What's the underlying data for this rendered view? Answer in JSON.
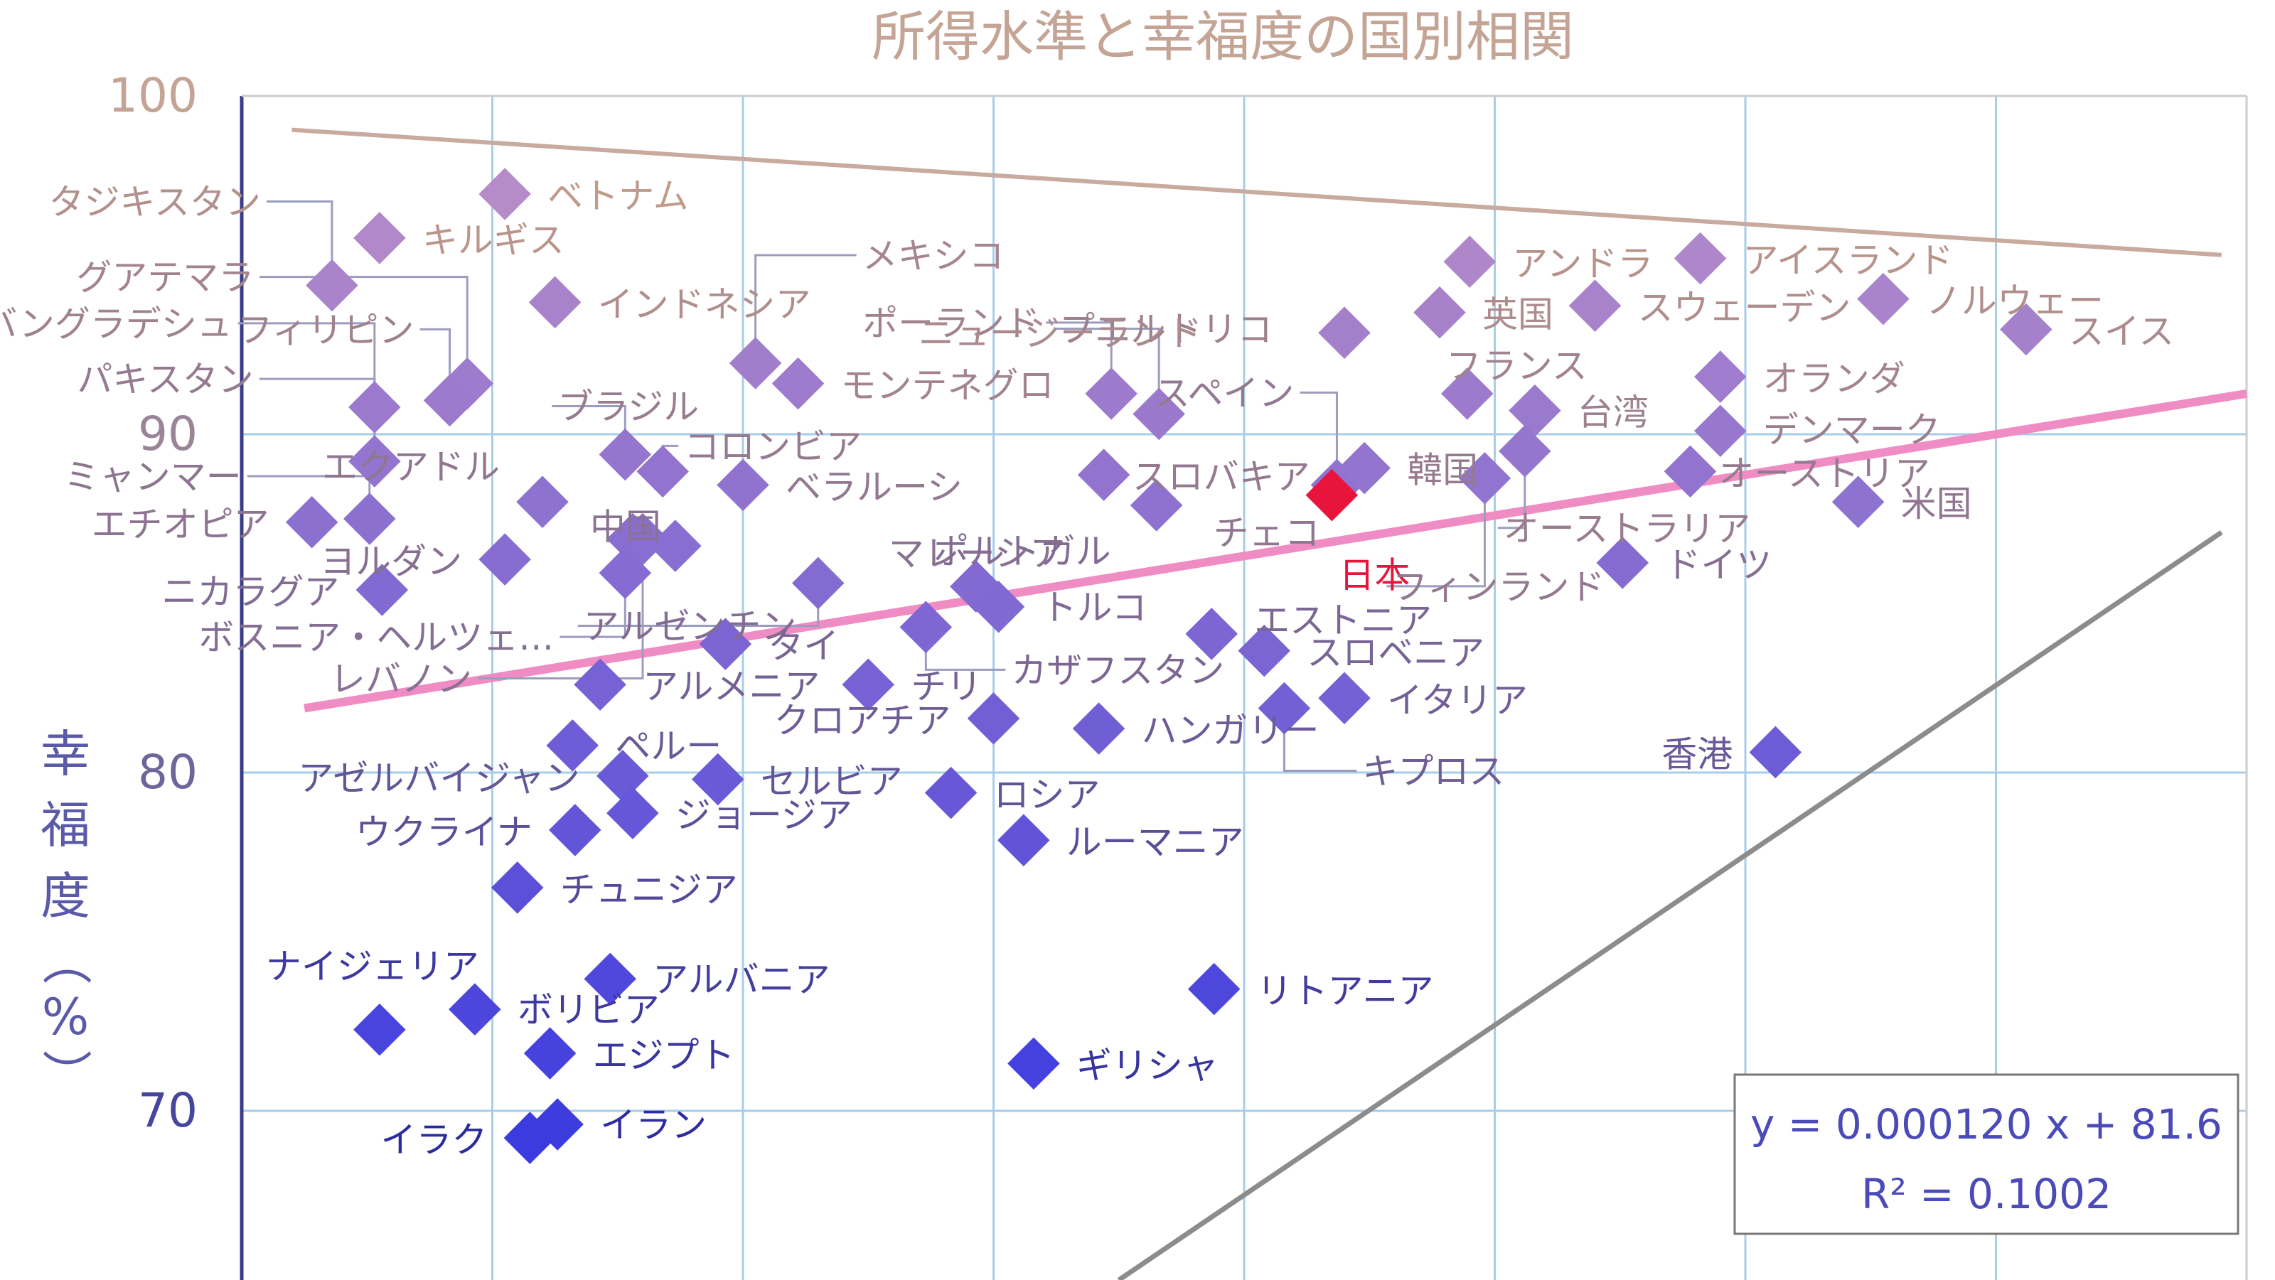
{
  "chart_data": {
    "type": "scatter",
    "title": "所得水準と幸福度の国別相関",
    "xlabel": "",
    "ylabel": "幸福度（%）",
    "xlim": [
      0,
      80000
    ],
    "ylim": [
      65,
      100
    ],
    "yticks": [
      70,
      80,
      90,
      100
    ],
    "x_gridlines": [
      0,
      10000,
      20000,
      30000,
      40000,
      50000,
      60000,
      70000,
      80000
    ],
    "grid": true,
    "legend": "none",
    "trendline": {
      "equation": "y = 0.000120 x + 81.6",
      "r2": "R² = 0.1002",
      "slope": 0.00012,
      "intercept": 81.6,
      "color": "#f08cc4"
    },
    "upper_line": {
      "from": [
        2000,
        99.0
      ],
      "to": [
        79000,
        95.3
      ],
      "color": "#c8aa9e"
    },
    "lower_line": {
      "from": [
        35000,
        65.0
      ],
      "to": [
        79000,
        87.1
      ],
      "color": "#8c8c8c"
    },
    "highlight_color": "#e8143c",
    "points": [
      {
        "name": "ベトナム",
        "x": 10500,
        "y": 97.1
      },
      {
        "name": "キルギス",
        "x": 5500,
        "y": 95.8
      },
      {
        "name": "タジキスタン",
        "x": 3600,
        "y": 94.4
      },
      {
        "name": "グアテマラ",
        "x": 9000,
        "y": 91.5
      },
      {
        "name": "フィリピン",
        "x": 8300,
        "y": 91.0
      },
      {
        "name": "バングラデシュ",
        "x": 5300,
        "y": 90.8
      },
      {
        "name": "パキスタン",
        "x": 5300,
        "y": 89.2
      },
      {
        "name": "インドネシア",
        "x": 12500,
        "y": 93.9
      },
      {
        "name": "メキシコ",
        "x": 20500,
        "y": 92.1
      },
      {
        "name": "モンテネグロ",
        "x": 22200,
        "y": 91.5
      },
      {
        "name": "ブラジル",
        "x": 15300,
        "y": 89.4
      },
      {
        "name": "コロンビア",
        "x": 16800,
        "y": 88.9
      },
      {
        "name": "エクアドル",
        "x": 12000,
        "y": 88.0
      },
      {
        "name": "ベラルーシ",
        "x": 20000,
        "y": 88.5
      },
      {
        "name": "中国",
        "x": 15600,
        "y": 86.9
      },
      {
        "name": "ミャンマー",
        "x": 5100,
        "y": 87.5
      },
      {
        "name": "エチオピア",
        "x": 2800,
        "y": 87.4
      },
      {
        "name": "ヨルダン",
        "x": 10500,
        "y": 86.3
      },
      {
        "name": "ニカラグア",
        "x": 5600,
        "y": 85.4
      },
      {
        "name": "マレーシア",
        "x": 17300,
        "y": 86.7
      },
      {
        "name": "ボスニア・ヘルツェ…",
        "x": 15300,
        "y": 85.9
      },
      {
        "name": "アルゼンチン",
        "x": 23000,
        "y": 85.6
      },
      {
        "name": "レバノン",
        "x": 16000,
        "y": 86.9
      },
      {
        "name": "タイ",
        "x": 19300,
        "y": 83.8
      },
      {
        "name": "ポルトガル",
        "x": 29300,
        "y": 85.5
      },
      {
        "name": "トルコ",
        "x": 30200,
        "y": 84.9
      },
      {
        "name": "カザフスタン",
        "x": 27300,
        "y": 84.3
      },
      {
        "name": "アルメニア",
        "x": 14300,
        "y": 82.6
      },
      {
        "name": "チリ",
        "x": 25000,
        "y": 82.6
      },
      {
        "name": "クロアチア",
        "x": 30000,
        "y": 81.6
      },
      {
        "name": "ハンガリー",
        "x": 34200,
        "y": 81.3
      },
      {
        "name": "ペルー",
        "x": 13200,
        "y": 80.8
      },
      {
        "name": "アゼルバイジャン",
        "x": 15200,
        "y": 79.9
      },
      {
        "name": "セルビア",
        "x": 19000,
        "y": 79.8
      },
      {
        "name": "ロシア",
        "x": 28300,
        "y": 79.4
      },
      {
        "name": "ジョージア",
        "x": 15600,
        "y": 78.8
      },
      {
        "name": "ウクライナ",
        "x": 13300,
        "y": 78.3
      },
      {
        "name": "ルーマニア",
        "x": 31200,
        "y": 78.0
      },
      {
        "name": "チュニジア",
        "x": 11000,
        "y": 76.6
      },
      {
        "name": "ナイジェリア",
        "x": 5500,
        "y": 72.4
      },
      {
        "name": "ボリビア",
        "x": 9300,
        "y": 73.0
      },
      {
        "name": "アルバニア",
        "x": 14700,
        "y": 73.9
      },
      {
        "name": "エジプト",
        "x": 12300,
        "y": 71.7
      },
      {
        "name": "イラン",
        "x": 12600,
        "y": 69.6
      },
      {
        "name": "イラク",
        "x": 11500,
        "y": 69.2
      },
      {
        "name": "ギリシャ",
        "x": 31600,
        "y": 71.4
      },
      {
        "name": "リトアニア",
        "x": 38800,
        "y": 73.6
      },
      {
        "name": "スロバキア",
        "x": 34400,
        "y": 88.8
      },
      {
        "name": "プエルトリコ",
        "x": 36600,
        "y": 90.6
      },
      {
        "name": "ポーランド",
        "x": 34700,
        "y": 91.2
      },
      {
        "name": "チェコ",
        "x": 36500,
        "y": 87.9
      },
      {
        "name": "ニュージーランド",
        "x": 44000,
        "y": 93.0
      },
      {
        "name": "スペイン",
        "x": 43700,
        "y": 88.5
      },
      {
        "name": "日本",
        "x": 43500,
        "y": 88.2,
        "highlight": true
      },
      {
        "name": "韓国",
        "x": 44800,
        "y": 89.0
      },
      {
        "name": "エストニア",
        "x": 38700,
        "y": 84.1
      },
      {
        "name": "スロベニア",
        "x": 40800,
        "y": 83.6
      },
      {
        "name": "イタリア",
        "x": 44000,
        "y": 82.2
      },
      {
        "name": "キプロス",
        "x": 41600,
        "y": 81.9
      },
      {
        "name": "アンドラ",
        "x": 49000,
        "y": 95.1
      },
      {
        "name": "英国",
        "x": 47800,
        "y": 93.6
      },
      {
        "name": "フランス",
        "x": 48900,
        "y": 91.2
      },
      {
        "name": "台湾",
        "x": 51600,
        "y": 90.7
      },
      {
        "name": "フィンランド",
        "x": 49600,
        "y": 88.7
      },
      {
        "name": "オーストラリア",
        "x": 51200,
        "y": 89.5
      },
      {
        "name": "ドイツ",
        "x": 55100,
        "y": 86.2
      },
      {
        "name": "アイスランド",
        "x": 58200,
        "y": 95.2
      },
      {
        "name": "スウェーデン",
        "x": 54000,
        "y": 93.8
      },
      {
        "name": "オランダ",
        "x": 59000,
        "y": 91.7
      },
      {
        "name": "デンマーク",
        "x": 59000,
        "y": 90.1
      },
      {
        "name": "オーストリア",
        "x": 57800,
        "y": 88.9
      },
      {
        "name": "ノルウェー",
        "x": 65500,
        "y": 94.0
      },
      {
        "name": "スイス",
        "x": 71200,
        "y": 93.1
      },
      {
        "name": "米国",
        "x": 64500,
        "y": 88.0
      },
      {
        "name": "香港",
        "x": 61200,
        "y": 80.6
      }
    ]
  }
}
